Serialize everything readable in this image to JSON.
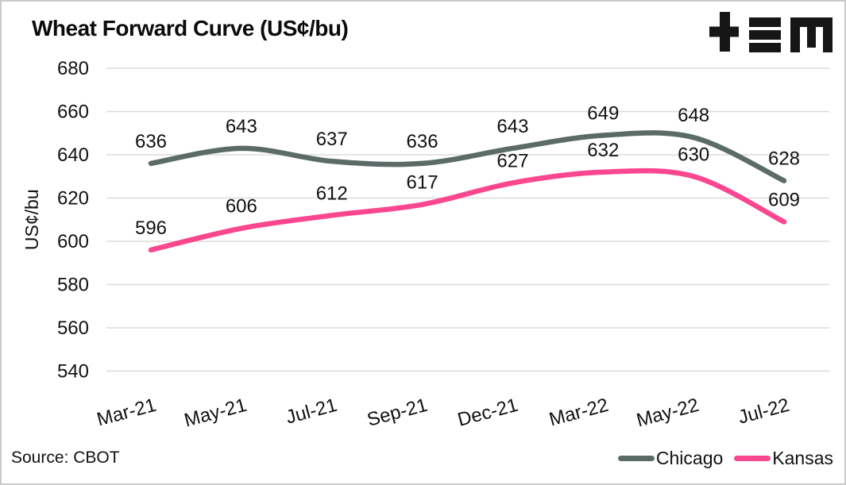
{
  "header": {
    "title": "Wheat Forward Curve (US¢/bu)"
  },
  "logo": {
    "name": "tem-logo",
    "color": "#161616"
  },
  "chart_data": {
    "type": "line",
    "title": "Wheat Forward Curve (US¢/bu)",
    "xlabel": "",
    "ylabel": "US¢/bu",
    "categories": [
      "Mar-21",
      "May-21",
      "Jul-21",
      "Sep-21",
      "Dec-21",
      "Mar-22",
      "May-22",
      "Jul-22"
    ],
    "series": [
      {
        "name": "Chicago",
        "color": "#5b6b68",
        "values": [
          636,
          643,
          637,
          636,
          643,
          649,
          648,
          628
        ]
      },
      {
        "name": "Kansas",
        "color": "#fa478f",
        "values": [
          596,
          606,
          612,
          617,
          627,
          632,
          630,
          609
        ]
      }
    ],
    "y_ticks": [
      680,
      660,
      640,
      620,
      600,
      580,
      560,
      540
    ],
    "ylim": [
      540,
      680
    ],
    "grid": "horizontal-only",
    "gridline_color": "#dcdcdc",
    "data_labels": true,
    "label_color": "#111111",
    "legend_position": "bottom-right"
  },
  "legend": {
    "items": [
      {
        "label": "Chicago",
        "color": "#5b6b68"
      },
      {
        "label": "Kansas",
        "color": "#fa478f"
      }
    ]
  },
  "footer": {
    "source": "Source: CBOT"
  }
}
